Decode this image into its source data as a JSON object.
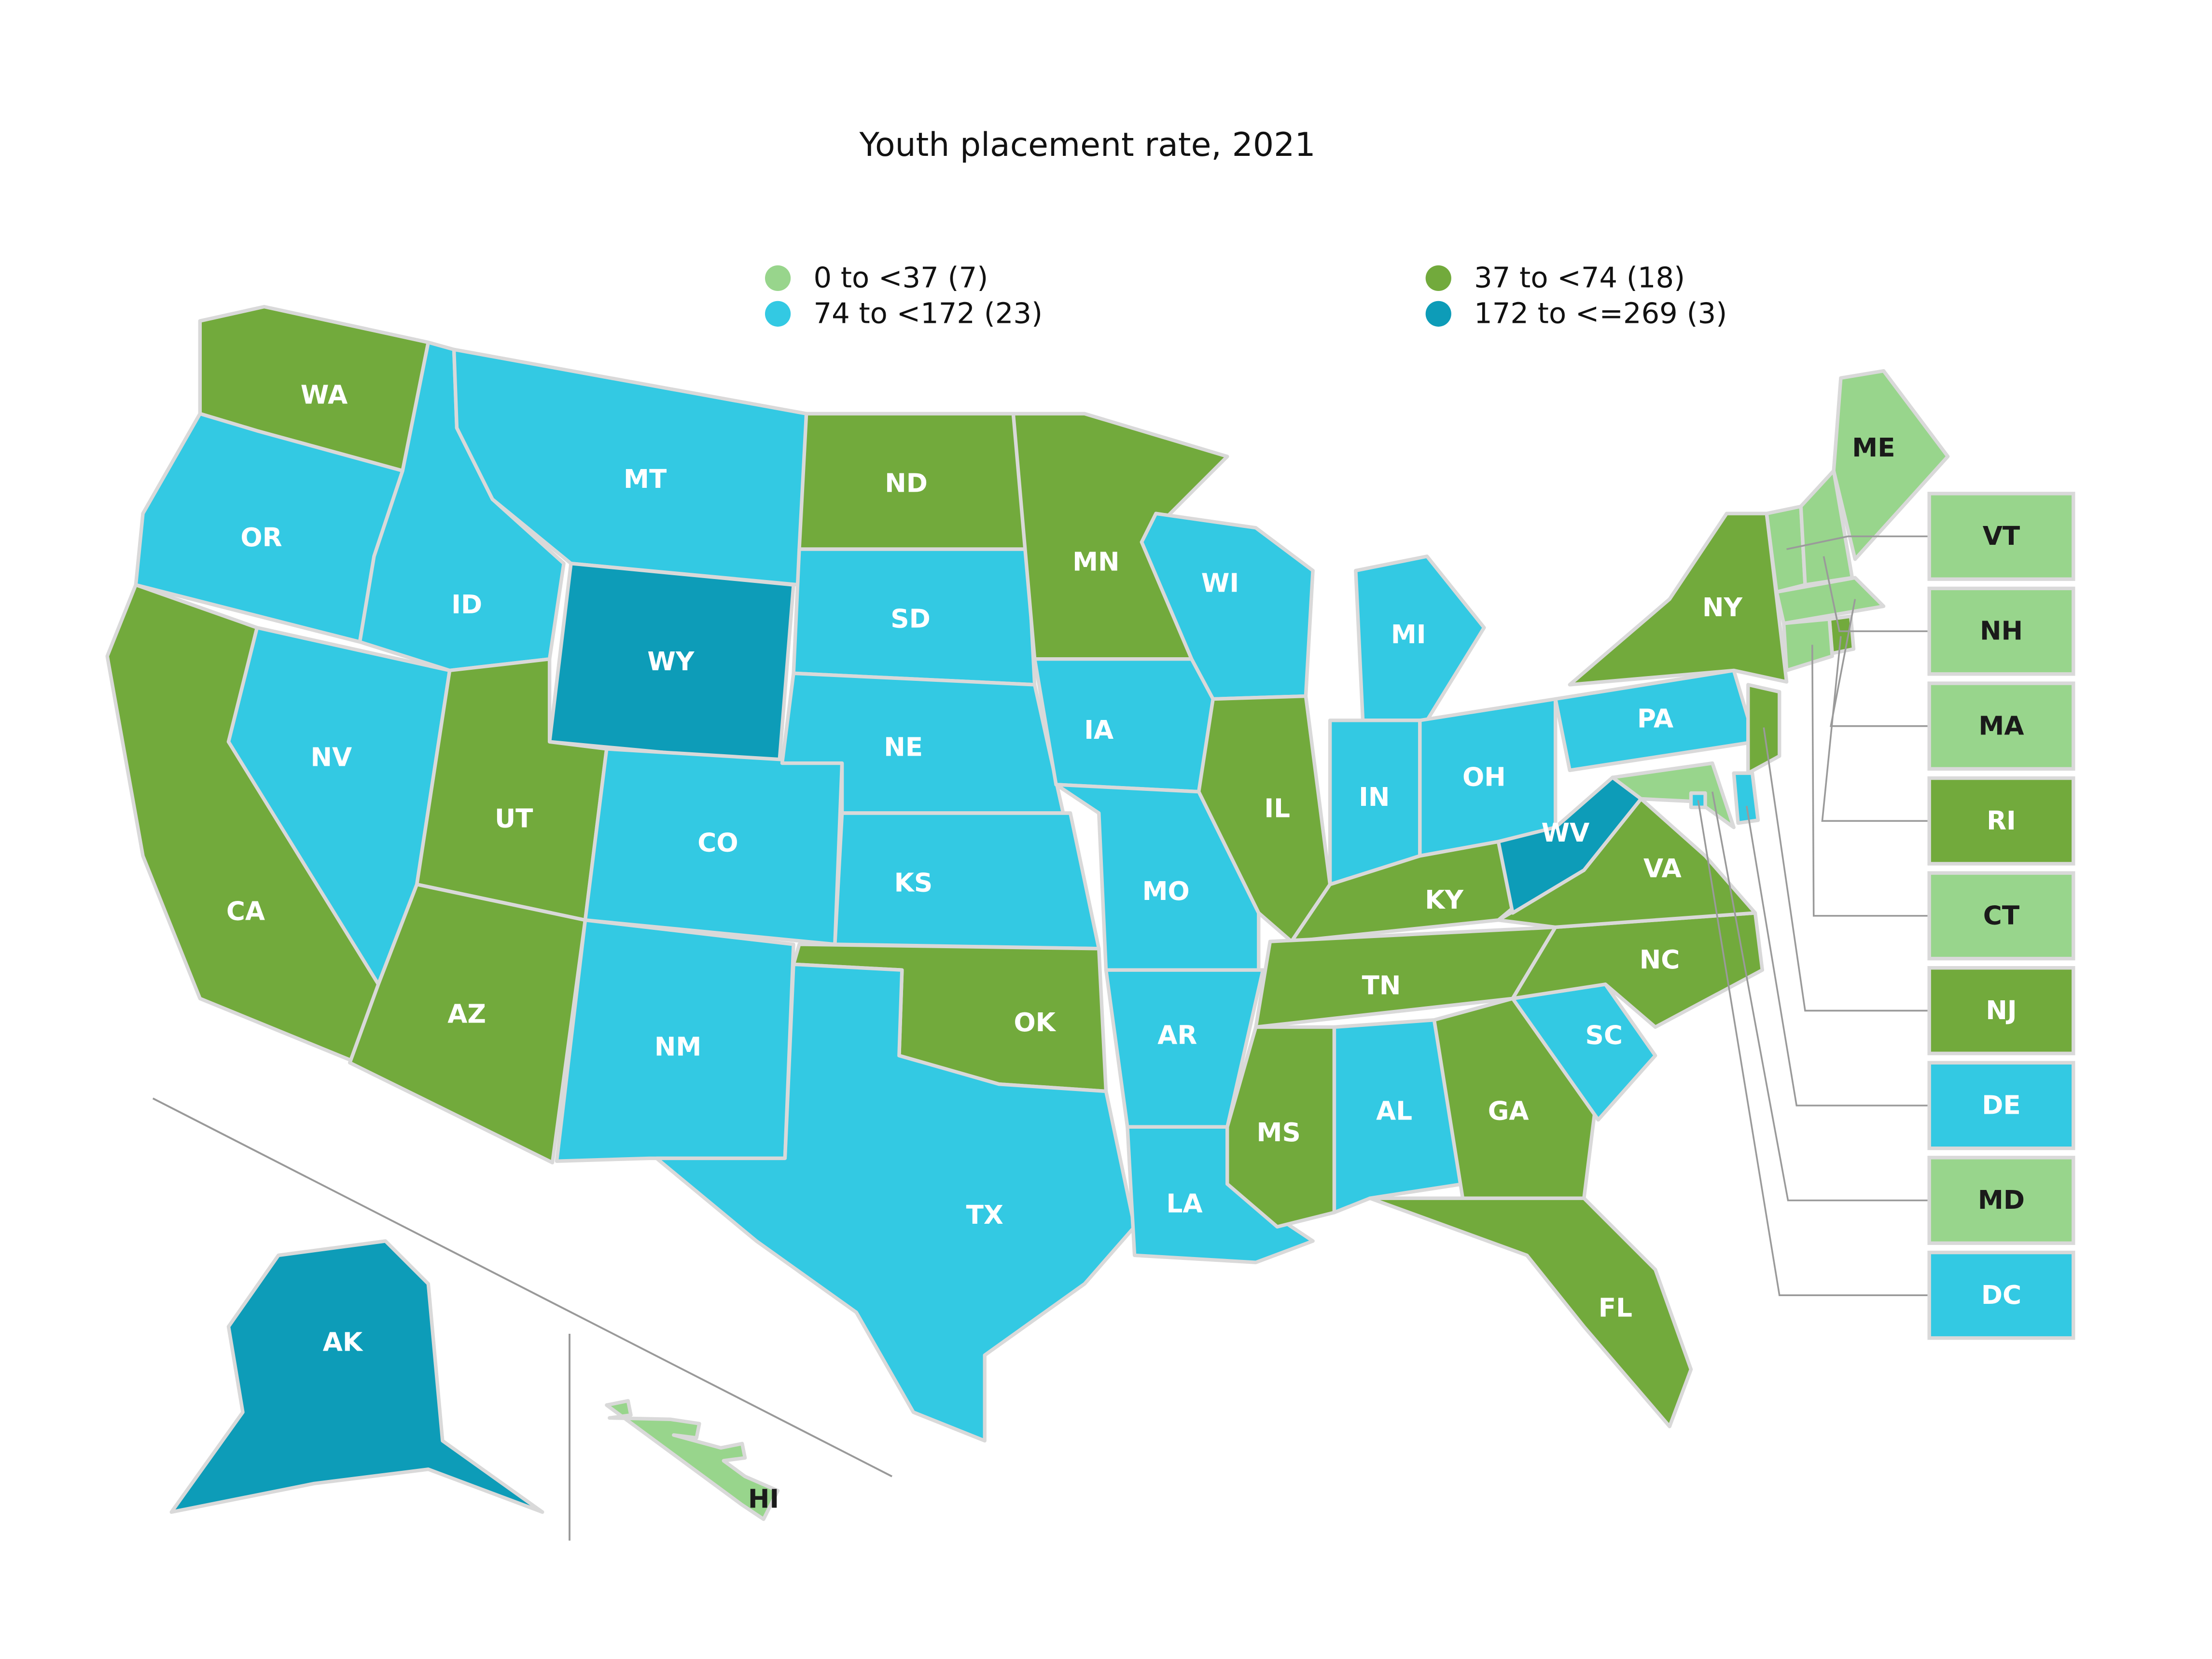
{
  "title": "Youth placement rate, 2021",
  "legend": [
    {
      "label": "0 to <37 (7)",
      "color": "#98d58c"
    },
    {
      "label": "37 to <74 (18)",
      "color": "#72aa3c"
    },
    {
      "label": "74 to <172 (23)",
      "color": "#33c9e3"
    },
    {
      "label": "172 to <=269 (3)",
      "color": "#0d9cb8"
    }
  ],
  "states": [
    {
      "label": "WA",
      "category": 1
    },
    {
      "label": "OR",
      "category": 2
    },
    {
      "label": "CA",
      "category": 1
    },
    {
      "label": "NV",
      "category": 2
    },
    {
      "label": "ID",
      "category": 2
    },
    {
      "label": "MT",
      "category": 2
    },
    {
      "label": "WY",
      "category": 3
    },
    {
      "label": "UT",
      "category": 1
    },
    {
      "label": "AZ",
      "category": 1
    },
    {
      "label": "CO",
      "category": 2
    },
    {
      "label": "NM",
      "category": 2
    },
    {
      "label": "ND",
      "category": 1
    },
    {
      "label": "SD",
      "category": 2
    },
    {
      "label": "NE",
      "category": 2
    },
    {
      "label": "KS",
      "category": 2
    },
    {
      "label": "OK",
      "category": 1
    },
    {
      "label": "TX",
      "category": 2
    },
    {
      "label": "MN",
      "category": 1
    },
    {
      "label": "IA",
      "category": 2
    },
    {
      "label": "MO",
      "category": 2
    },
    {
      "label": "AR",
      "category": 2
    },
    {
      "label": "LA",
      "category": 2
    },
    {
      "label": "WI",
      "category": 2
    },
    {
      "label": "IL",
      "category": 1
    },
    {
      "label": "MI",
      "category": 2
    },
    {
      "label": "IN",
      "category": 2
    },
    {
      "label": "OH",
      "category": 2
    },
    {
      "label": "KY",
      "category": 1
    },
    {
      "label": "TN",
      "category": 1
    },
    {
      "label": "MS",
      "category": 1
    },
    {
      "label": "AL",
      "category": 2
    },
    {
      "label": "GA",
      "category": 1
    },
    {
      "label": "FL",
      "category": 1
    },
    {
      "label": "SC",
      "category": 2
    },
    {
      "label": "NC",
      "category": 1
    },
    {
      "label": "VA",
      "category": 1
    },
    {
      "label": "WV",
      "category": 3
    },
    {
      "label": "PA",
      "category": 2
    },
    {
      "label": "NY",
      "category": 1
    },
    {
      "label": "ME",
      "category": 0
    },
    {
      "label": "AK",
      "category": 3
    },
    {
      "label": "HI",
      "category": 0
    },
    {
      "label": "VT",
      "category": 0
    },
    {
      "label": "NH",
      "category": 0
    },
    {
      "label": "MA",
      "category": 0
    },
    {
      "label": "RI",
      "category": 1
    },
    {
      "label": "CT",
      "category": 0
    },
    {
      "label": "NJ",
      "category": 1
    },
    {
      "label": "DE",
      "category": 2
    },
    {
      "label": "MD",
      "category": 0
    },
    {
      "label": "DC",
      "category": 2
    }
  ]
}
